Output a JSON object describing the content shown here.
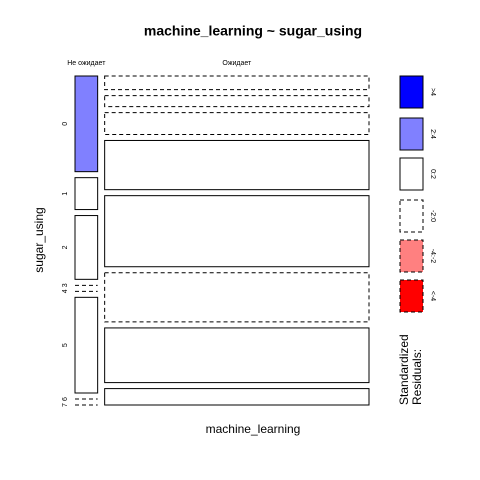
{
  "chart_data": {
    "type": "mosaic",
    "title": "machine_learning ~ sugar_using",
    "x_label": "machine_learning",
    "y_label": "sugar_using",
    "columns": [
      "Не ожидает",
      "Ожидает"
    ],
    "rows": [
      "0",
      "1",
      "2",
      "3",
      "4",
      "5",
      "6",
      "7"
    ],
    "counts": [
      [
        3,
        1,
        2,
        0,
        0,
        3,
        0,
        0
      ],
      [
        5,
        4,
        8,
        18,
        26,
        18,
        20,
        6
      ]
    ],
    "residuals": [
      [
        "2:4",
        "0:2",
        "0:2",
        "-2:0",
        "-2:0",
        "0:2",
        "-2:0",
        "-2:0"
      ],
      [
        "-2:0",
        "-2:0",
        "-2:0",
        "0:2",
        "0:2",
        "-2:0",
        "0:2",
        "0:2"
      ]
    ],
    "legend": {
      "title": [
        "Standardized",
        "Residuals:"
      ],
      "labels": [
        ">4",
        "2:4",
        "0:2",
        "-2:0",
        "-4:-2",
        "<-4"
      ],
      "colors": [
        "#0000ff",
        "#8080ff",
        "#ffffff",
        "#ffffff",
        "#ff8080",
        "#ff0000"
      ],
      "dashed": [
        false,
        false,
        false,
        true,
        true,
        true
      ]
    }
  }
}
